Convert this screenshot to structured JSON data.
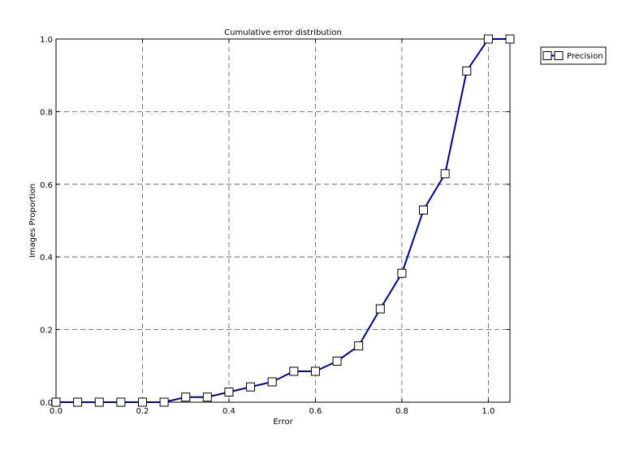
{
  "chart_data": {
    "type": "line",
    "title": "Cumulative error distribution",
    "xlabel": "Error",
    "ylabel": "Images Proportion",
    "xlim": [
      0.0,
      1.05
    ],
    "ylim": [
      0.0,
      1.0
    ],
    "xticks": [
      0.0,
      0.2,
      0.4,
      0.6,
      0.8,
      1.0
    ],
    "xtick_labels": [
      "0.0",
      "0.2",
      "0.4",
      "0.6",
      "0.8",
      "1.0"
    ],
    "yticks": [
      0.0,
      0.2,
      0.4,
      0.6,
      0.8,
      1.0
    ],
    "ytick_labels": [
      "0.0",
      "0.2",
      "0.4",
      "0.6",
      "0.8",
      "1.0"
    ],
    "grid": true,
    "legend_position": "outside-top-right",
    "x": [
      0.0,
      0.05,
      0.1,
      0.15,
      0.2,
      0.25,
      0.3,
      0.35,
      0.4,
      0.45,
      0.5,
      0.55,
      0.6,
      0.65,
      0.7,
      0.75,
      0.8,
      0.85,
      0.9,
      0.95,
      1.0,
      1.05
    ],
    "series": [
      {
        "name": "Precision",
        "color": "#000080",
        "marker": "square",
        "values": [
          0.0,
          0.0,
          0.0,
          0.0,
          0.0,
          0.0,
          0.014,
          0.014,
          0.028,
          0.042,
          0.056,
          0.085,
          0.085,
          0.113,
          0.155,
          0.257,
          0.355,
          0.529,
          0.629,
          0.912,
          1.0,
          1.0
        ]
      }
    ]
  }
}
